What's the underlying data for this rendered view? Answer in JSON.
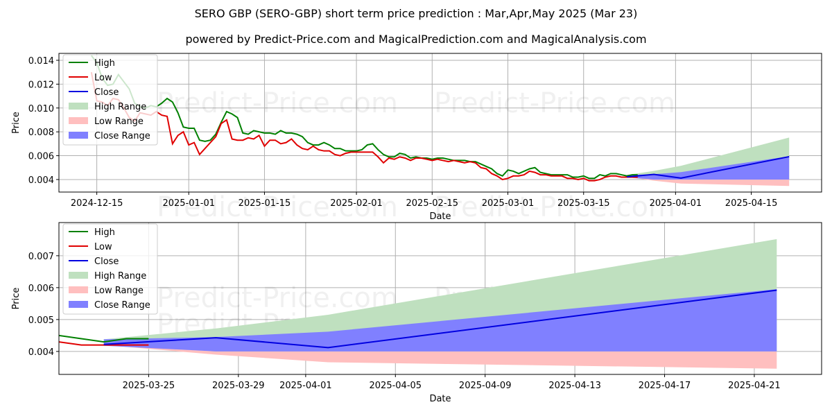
{
  "title": "SERO GBP (SERO-GBP) short term price prediction : Mar,Apr,May 2025 (Mar 23)",
  "subtitle": "powered by Predict-Price.com and MagicalPrediction.com and MagicalAnalysis.com",
  "watermark": "Predict-Price.com",
  "colors": {
    "high": "#008000",
    "low": "#e00000",
    "close": "#0000e0",
    "high_range": "#bfe0bf",
    "low_range": "#ffbfbf",
    "close_range": "#8080ff"
  },
  "chart_data": [
    {
      "type": "line",
      "xlabel": "Date",
      "ylabel": "Price",
      "xlim": [
        "2024-12-08",
        "2025-04-28"
      ],
      "ylim": [
        0.00295,
        0.01458
      ],
      "xticks": [
        "2024-12-15",
        "2025-01-01",
        "2025-01-15",
        "2025-02-01",
        "2025-02-15",
        "2025-03-01",
        "2025-03-15",
        "2025-04-01",
        "2025-04-15"
      ],
      "yticks": [
        "0.004",
        "0.006",
        "0.008",
        "0.010",
        "0.012",
        "0.014"
      ],
      "legend": "top-left",
      "grid": true
    },
    {
      "type": "line",
      "xlabel": "Date",
      "ylabel": "Price",
      "xlim": [
        "2025-03-21",
        "2025-04-24"
      ],
      "ylim": [
        0.00328,
        0.00804
      ],
      "xticks": [
        "2025-03-25",
        "2025-03-29",
        "2025-04-01",
        "2025-04-05",
        "2025-04-09",
        "2025-04-13",
        "2025-04-17",
        "2025-04-21"
      ],
      "yticks": [
        "0.004",
        "0.005",
        "0.006",
        "0.007"
      ],
      "legend": "top-left",
      "grid": true
    }
  ],
  "legend": [
    "High",
    "Low",
    "Close",
    "High Range",
    "Low Range",
    "Close Range"
  ],
  "history": {
    "start": "2024-12-14",
    "high": [
      0.0144,
      0.0138,
      0.0125,
      0.0119,
      0.012,
      0.0128,
      0.0122,
      0.0116,
      0.0104,
      0.0101,
      0.01,
      0.0102,
      0.0101,
      0.0104,
      0.0108,
      0.0105,
      0.0096,
      0.0084,
      0.0083,
      0.0083,
      0.0073,
      0.0072,
      0.0073,
      0.0078,
      0.0088,
      0.0097,
      0.0095,
      0.0092,
      0.0079,
      0.0078,
      0.0081,
      0.008,
      0.0079,
      0.0079,
      0.0078,
      0.0081,
      0.0079,
      0.0079,
      0.0078,
      0.0076,
      0.0071,
      0.0069,
      0.0069,
      0.0071,
      0.0069,
      0.0066,
      0.0066,
      0.0064,
      0.0064,
      0.0064,
      0.0065,
      0.0069,
      0.007,
      0.0065,
      0.0061,
      0.0059,
      0.0059,
      0.0062,
      0.0061,
      0.0058,
      0.0059,
      0.0058,
      0.0058,
      0.0057,
      0.0058,
      0.0058,
      0.0057,
      0.0056,
      0.0056,
      0.0056,
      0.0055,
      0.0055,
      0.0053,
      0.0051,
      0.0049,
      0.0045,
      0.0043,
      0.0048,
      0.0047,
      0.0045,
      0.0047,
      0.0049,
      0.005,
      0.0046,
      0.0045,
      0.0044,
      0.0044,
      0.0044,
      0.0044,
      0.0042,
      0.0042,
      0.0043,
      0.0041,
      0.0041,
      0.0044,
      0.0043,
      0.0045,
      0.0045,
      0.0044,
      0.0043,
      0.0044,
      0.0044
    ],
    "low": [
      0.013,
      0.0106,
      0.0105,
      0.0102,
      0.0108,
      0.0107,
      0.01,
      0.0092,
      0.0089,
      0.0096,
      0.0095,
      0.0094,
      0.0097,
      0.0094,
      0.0093,
      0.007,
      0.0077,
      0.008,
      0.0069,
      0.0071,
      0.0061,
      0.0066,
      0.0071,
      0.0076,
      0.0087,
      0.009,
      0.0074,
      0.0073,
      0.0073,
      0.0075,
      0.0074,
      0.0077,
      0.0068,
      0.0073,
      0.0073,
      0.007,
      0.0071,
      0.0074,
      0.0069,
      0.0066,
      0.0065,
      0.0068,
      0.0065,
      0.0064,
      0.0064,
      0.0061,
      0.006,
      0.0062,
      0.0063,
      0.0063,
      0.0063,
      0.0063,
      0.0063,
      0.0059,
      0.0054,
      0.0058,
      0.0057,
      0.0059,
      0.0058,
      0.0056,
      0.0058,
      0.0058,
      0.0057,
      0.0056,
      0.0057,
      0.0056,
      0.0055,
      0.0056,
      0.0055,
      0.0054,
      0.0055,
      0.0054,
      0.005,
      0.0049,
      0.0045,
      0.0043,
      0.004,
      0.0041,
      0.0043,
      0.0043,
      0.0044,
      0.0047,
      0.0046,
      0.0044,
      0.0044,
      0.0043,
      0.0043,
      0.0043,
      0.0041,
      0.0041,
      0.004,
      0.0041,
      0.0039,
      0.0039,
      0.004,
      0.0042,
      0.0043,
      0.0043,
      0.0042,
      0.0042,
      0.0042,
      0.0042
    ]
  },
  "forecast": {
    "dates": [
      "2025-03-23",
      "2025-03-28",
      "2025-04-02",
      "2025-04-22"
    ],
    "close": [
      0.00422,
      0.00443,
      0.00412,
      0.00592
    ],
    "high_range": [
      [
        0.00418,
        0.00438
      ],
      [
        0.00405,
        0.00472
      ],
      [
        0.004,
        0.00515
      ],
      [
        0.004,
        0.00752
      ]
    ],
    "close_range": [
      [
        0.00418,
        0.00438
      ],
      [
        0.004,
        0.00445
      ],
      [
        0.004,
        0.00462
      ],
      [
        0.004,
        0.00595
      ]
    ],
    "low_range": [
      [
        0.0042,
        0.0042
      ],
      [
        0.0039,
        0.004
      ],
      [
        0.00366,
        0.004
      ],
      [
        0.00346,
        0.004
      ]
    ]
  }
}
